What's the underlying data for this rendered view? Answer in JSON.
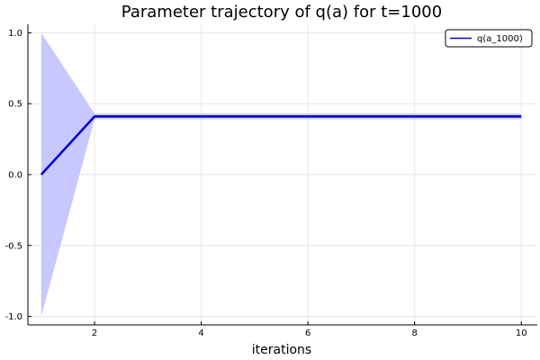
{
  "chart_data": {
    "type": "line",
    "title": "Parameter trajectory of q(a) for t=1000",
    "xlabel": "iterations",
    "ylabel": "",
    "xlim": [
      0.75,
      10.3
    ],
    "ylim": [
      -1.06,
      1.06
    ],
    "xticks": [
      2,
      4,
      6,
      8,
      10
    ],
    "xtick_labels": [
      "2",
      "4",
      "6",
      "8",
      "10"
    ],
    "yticks": [
      -1.0,
      -0.5,
      0.0,
      0.5,
      1.0
    ],
    "ytick_labels": [
      "-1.0",
      "-0.5",
      "0.0",
      "0.5",
      "1.0"
    ],
    "grid": true,
    "legend_position": "top-right",
    "series": [
      {
        "name": "q(a_1000)",
        "color": "#0000cc",
        "x": [
          1,
          2,
          3,
          4,
          5,
          6,
          7,
          8,
          9,
          10
        ],
        "y": [
          0.0,
          0.41,
          0.41,
          0.41,
          0.41,
          0.41,
          0.41,
          0.41,
          0.41,
          0.41
        ],
        "band_lower": [
          -1.0,
          0.39,
          0.39,
          0.39,
          0.39,
          0.39,
          0.39,
          0.39,
          0.39,
          0.39
        ],
        "band_upper": [
          1.0,
          0.43,
          0.43,
          0.43,
          0.43,
          0.43,
          0.43,
          0.43,
          0.43,
          0.43
        ],
        "band_color": "#c8c8ff"
      }
    ]
  }
}
